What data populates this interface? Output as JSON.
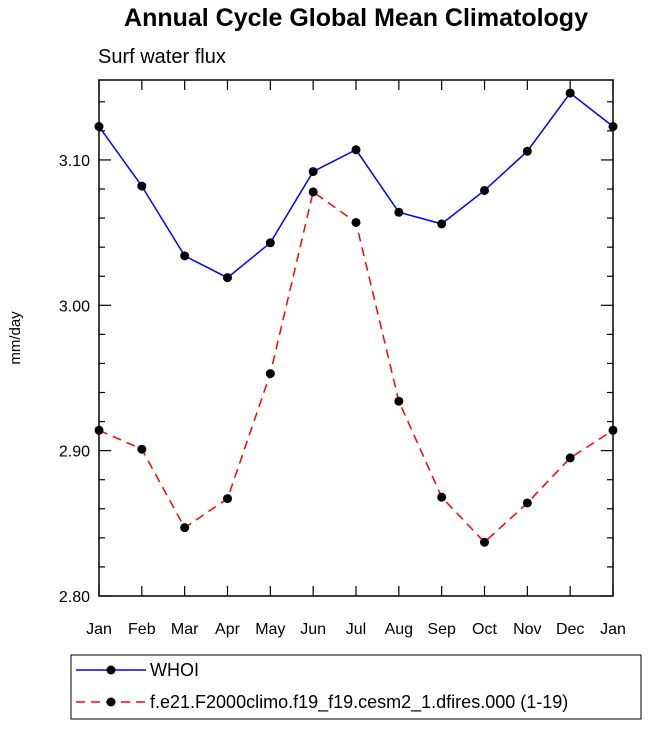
{
  "chart_data": {
    "type": "line",
    "title": "Annual Cycle Global Mean Climatology",
    "subtitle": "Surf water flux",
    "ylabel": "mm/day",
    "xlabel": "",
    "categories": [
      "Jan",
      "Feb",
      "Mar",
      "Apr",
      "May",
      "Jun",
      "Jul",
      "Aug",
      "Sep",
      "Oct",
      "Nov",
      "Dec",
      "Jan"
    ],
    "ylim": [
      2.8,
      3.155
    ],
    "yticks": [
      2.8,
      2.9,
      3.0,
      3.1
    ],
    "ytick_labels": [
      "2.80",
      "2.90",
      "3.00",
      "3.10"
    ],
    "grid": false,
    "legend_position": "bottom",
    "series": [
      {
        "name": "WHOI",
        "color": "#0000ff",
        "style": "solid",
        "values": [
          3.123,
          3.082,
          3.034,
          3.019,
          3.043,
          3.092,
          3.107,
          3.064,
          3.056,
          3.079,
          3.106,
          3.146,
          3.123
        ]
      },
      {
        "name": "f.e21.F2000climo.f19_f19.cesm2_1.dfires.000 (1-19)",
        "color": "#ff0000",
        "style": "dashed",
        "values": [
          2.914,
          2.901,
          2.847,
          2.867,
          2.953,
          3.078,
          3.057,
          2.934,
          2.868,
          2.837,
          2.864,
          2.895,
          2.914
        ]
      }
    ]
  }
}
